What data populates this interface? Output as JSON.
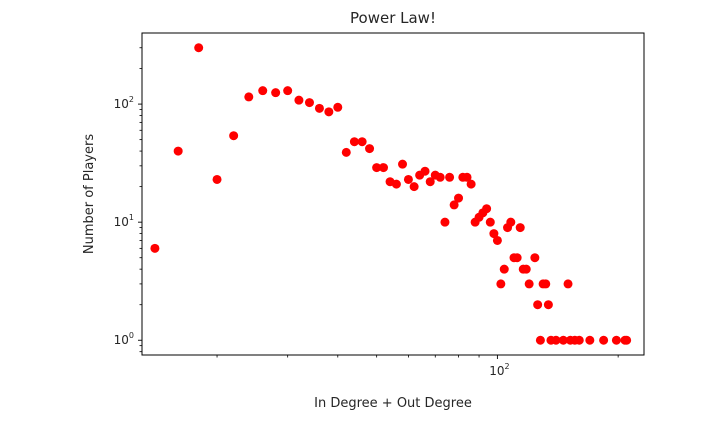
{
  "chart_data": {
    "type": "scatter",
    "title": "Power Law!",
    "xlabel": "In Degree + Out Degree",
    "ylabel": "Number of Players",
    "xscale": "log",
    "yscale": "log",
    "xlim": [
      13.0,
      232.0
    ],
    "ylim": [
      0.75,
      400
    ],
    "x_major_ticks": [
      {
        "value": 100,
        "base": "10",
        "exp": "2"
      }
    ],
    "y_major_ticks": [
      {
        "value": 1,
        "base": "10",
        "exp": "0"
      },
      {
        "value": 10,
        "base": "10",
        "exp": "1"
      },
      {
        "value": 100,
        "base": "10",
        "exp": "2"
      }
    ],
    "marker_color": "#ff0000",
    "series": [
      {
        "points": [
          [
            14,
            6
          ],
          [
            16,
            40
          ],
          [
            18,
            300
          ],
          [
            20,
            23
          ],
          [
            22,
            54
          ],
          [
            24,
            115
          ],
          [
            26,
            130
          ],
          [
            28,
            125
          ],
          [
            30,
            130
          ],
          [
            32,
            108
          ],
          [
            34,
            103
          ],
          [
            36,
            92
          ],
          [
            38,
            86
          ],
          [
            40,
            94
          ],
          [
            42,
            39
          ],
          [
            44,
            48
          ],
          [
            46,
            48
          ],
          [
            48,
            42
          ],
          [
            50,
            29
          ],
          [
            52,
            29
          ],
          [
            54,
            22
          ],
          [
            56,
            21
          ],
          [
            58,
            31
          ],
          [
            60,
            23
          ],
          [
            62,
            20
          ],
          [
            64,
            25
          ],
          [
            66,
            27
          ],
          [
            68,
            22
          ],
          [
            70,
            25
          ],
          [
            72,
            24
          ],
          [
            74,
            10
          ],
          [
            76,
            24
          ],
          [
            78,
            14
          ],
          [
            80,
            16
          ],
          [
            82,
            24
          ],
          [
            84,
            24
          ],
          [
            86,
            21
          ],
          [
            88,
            10
          ],
          [
            90,
            11
          ],
          [
            92,
            12
          ],
          [
            94,
            13
          ],
          [
            96,
            10
          ],
          [
            98,
            8
          ],
          [
            100,
            7
          ],
          [
            102,
            3
          ],
          [
            104,
            4
          ],
          [
            106,
            9
          ],
          [
            108,
            10
          ],
          [
            110,
            5
          ],
          [
            112,
            5
          ],
          [
            114,
            9
          ],
          [
            116,
            4
          ],
          [
            118,
            4
          ],
          [
            120,
            3
          ],
          [
            124,
            5
          ],
          [
            126,
            2
          ],
          [
            128,
            1
          ],
          [
            130,
            3
          ],
          [
            132,
            3
          ],
          [
            134,
            2
          ],
          [
            136,
            1
          ],
          [
            140,
            1
          ],
          [
            146,
            1
          ],
          [
            150,
            3
          ],
          [
            152,
            1
          ],
          [
            156,
            1
          ],
          [
            160,
            1
          ],
          [
            170,
            1
          ],
          [
            184,
            1
          ],
          [
            198,
            1
          ],
          [
            208,
            1
          ],
          [
            210,
            1
          ]
        ]
      }
    ]
  }
}
